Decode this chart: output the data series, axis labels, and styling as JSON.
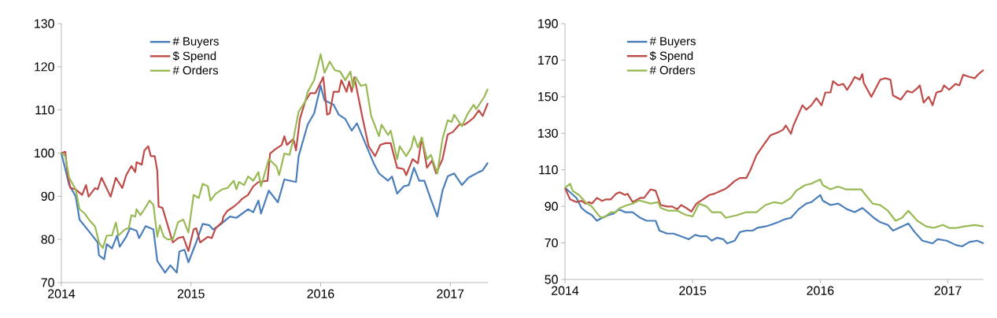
{
  "chart_data": [
    {
      "type": "line",
      "xlim": [
        2014,
        2017.29
      ],
      "xticks": [
        2014,
        2015,
        2016,
        2017
      ],
      "ylim": [
        70,
        130
      ],
      "yticks": [
        70,
        80,
        90,
        100,
        110,
        120,
        130
      ],
      "grid": false,
      "legend": "top left",
      "marker": "none",
      "line_style": "solid",
      "series": [
        {
          "name": "# Buyers",
          "color": "#4a7ebb",
          "x": [
            2014.0,
            2014.06,
            2014.11,
            2014.14,
            2014.22,
            2014.28,
            2014.29,
            2014.33,
            2014.35,
            2014.39,
            2014.43,
            2014.45,
            2014.5,
            2014.53,
            2014.58,
            2014.6,
            2014.65,
            2014.71,
            2014.74,
            2014.8,
            2014.84,
            2014.89,
            2014.91,
            2014.95,
            2014.98,
            2015.04,
            2015.09,
            2015.14,
            2015.17,
            2015.22,
            2015.3,
            2015.35,
            2015.44,
            2015.48,
            2015.52,
            2015.54,
            2015.6,
            2015.67,
            2015.72,
            2015.81,
            2015.83,
            2015.9,
            2015.95,
            2016.0,
            2016.03,
            2016.1,
            2016.14,
            2016.19,
            2016.24,
            2016.28,
            2016.33,
            2016.41,
            2016.45,
            2016.52,
            2016.55,
            2016.59,
            2016.64,
            2016.68,
            2016.72,
            2016.76,
            2016.8,
            2016.85,
            2016.9,
            2016.94,
            2016.98,
            2017.03,
            2017.09,
            2017.14,
            2017.22,
            2017.25,
            2017.29
          ],
          "values": [
            100,
            92.6,
            90,
            84.6,
            81.6,
            79.3,
            76.3,
            75.4,
            78.9,
            77.9,
            80.9,
            78.3,
            80.6,
            82.6,
            82,
            80.3,
            83.1,
            82.3,
            75,
            72.3,
            74,
            72.3,
            77.2,
            77.6,
            74.7,
            79.3,
            83.6,
            83.3,
            82.3,
            83.3,
            85.3,
            85,
            87,
            86.3,
            89,
            86,
            91.3,
            88.6,
            93.9,
            93.3,
            99.3,
            106.6,
            109.2,
            115.6,
            112.2,
            111.2,
            108.9,
            107.9,
            105.2,
            106.9,
            103.3,
            97.6,
            95.3,
            93.6,
            94.6,
            90.6,
            92.3,
            92.6,
            96.6,
            93.6,
            93.6,
            89.3,
            85.3,
            91.3,
            94.6,
            95.3,
            92.6,
            94.3,
            95.6,
            96,
            97.8
          ]
        },
        {
          "name": "$ Spend",
          "color": "#be4b48",
          "x": [
            2014.0,
            2014.03,
            2014.05,
            2014.07,
            2014.11,
            2014.16,
            2014.19,
            2014.21,
            2014.26,
            2014.28,
            2014.31,
            2014.38,
            2014.42,
            2014.47,
            2014.5,
            2014.54,
            2014.57,
            2014.58,
            2014.62,
            2014.64,
            2014.67,
            2014.69,
            2014.72,
            2014.74,
            2014.75,
            2014.78,
            2014.82,
            2014.86,
            2014.9,
            2014.94,
            2014.98,
            2015.02,
            2015.04,
            2015.07,
            2015.13,
            2015.16,
            2015.19,
            2015.24,
            2015.25,
            2015.28,
            2015.33,
            2015.37,
            2015.39,
            2015.44,
            2015.48,
            2015.52,
            2015.59,
            2015.61,
            2015.65,
            2015.7,
            2015.72,
            2015.74,
            2015.79,
            2015.81,
            2015.84,
            2015.88,
            2015.92,
            2015.96,
            2016.02,
            2016.05,
            2016.07,
            2016.1,
            2016.14,
            2016.16,
            2016.2,
            2016.22,
            2016.24,
            2016.26,
            2016.32,
            2016.37,
            2016.42,
            2016.46,
            2016.5,
            2016.54,
            2016.59,
            2016.64,
            2016.66,
            2016.71,
            2016.75,
            2016.78,
            2016.82,
            2016.86,
            2016.89,
            2016.94,
            2016.98,
            2017.02,
            2017.07,
            2017.11,
            2017.14,
            2017.18,
            2017.22,
            2017.25,
            2017.29
          ],
          "values": [
            100,
            100.3,
            94.6,
            91.9,
            91.6,
            90.3,
            92.6,
            89.9,
            91.9,
            91.6,
            94.3,
            89.9,
            94.3,
            91.9,
            94.9,
            97,
            95.6,
            97.9,
            97.3,
            100.6,
            101.6,
            99.3,
            99.3,
            95.9,
            87.6,
            87.3,
            83.3,
            79.3,
            80.3,
            80.6,
            77.3,
            82.3,
            82.6,
            79.3,
            80.6,
            80.3,
            82.6,
            84,
            85.3,
            86.6,
            87.6,
            88.6,
            89.3,
            90.3,
            92.3,
            93.3,
            93.6,
            99.9,
            100.9,
            101.9,
            103.9,
            101.9,
            103.3,
            100.6,
            107.9,
            111.9,
            113.9,
            113.9,
            117.6,
            108.9,
            109.2,
            114.2,
            114.2,
            116.9,
            114.2,
            116.6,
            114.2,
            117.6,
            108.6,
            101.6,
            99.3,
            101.9,
            102.3,
            102.3,
            96.6,
            96.3,
            94.9,
            98.6,
            97.6,
            103.6,
            96.6,
            98.3,
            95.3,
            98.6,
            104.3,
            104.9,
            106.6,
            106.6,
            107.2,
            108.2,
            109.9,
            108.6,
            111.6
          ]
        },
        {
          "name": "# Orders",
          "color": "#98b954",
          "x": [
            2014.0,
            2014.03,
            2014.06,
            2014.11,
            2014.14,
            2014.18,
            2014.22,
            2014.26,
            2014.29,
            2014.32,
            2014.35,
            2014.39,
            2014.42,
            2014.44,
            2014.49,
            2014.52,
            2014.54,
            2014.57,
            2014.58,
            2014.61,
            2014.64,
            2014.68,
            2014.71,
            2014.74,
            2014.76,
            2014.79,
            2014.82,
            2014.86,
            2014.9,
            2014.94,
            2014.98,
            2015.02,
            2015.06,
            2015.09,
            2015.13,
            2015.15,
            2015.19,
            2015.24,
            2015.28,
            2015.33,
            2015.35,
            2015.37,
            2015.41,
            2015.44,
            2015.48,
            2015.52,
            2015.54,
            2015.6,
            2015.66,
            2015.68,
            2015.72,
            2015.76,
            2015.79,
            2015.83,
            2015.88,
            2015.9,
            2015.95,
            2016.0,
            2016.03,
            2016.07,
            2016.11,
            2016.15,
            2016.19,
            2016.23,
            2016.25,
            2016.27,
            2016.31,
            2016.35,
            2016.39,
            2016.45,
            2016.47,
            2016.52,
            2016.54,
            2016.59,
            2016.61,
            2016.66,
            2016.7,
            2016.72,
            2016.75,
            2016.78,
            2016.82,
            2016.85,
            2016.9,
            2016.94,
            2016.98,
            2017.01,
            2017.03,
            2017.09,
            2017.13,
            2017.18,
            2017.2,
            2017.26,
            2017.29
          ],
          "values": [
            100,
            99.3,
            94.3,
            91.6,
            87,
            86,
            84.3,
            83,
            79.3,
            78,
            80.9,
            80.9,
            83.9,
            80.9,
            82.3,
            82.6,
            85.6,
            85.3,
            87,
            85.6,
            87,
            89,
            88,
            80.6,
            83.3,
            80.6,
            80,
            80,
            84,
            84.6,
            81.6,
            90.3,
            89.6,
            92.9,
            92.3,
            89,
            90.6,
            91.6,
            91.9,
            93.6,
            91.6,
            93.3,
            92.6,
            94.6,
            93.6,
            95.6,
            92.3,
            98.6,
            96.9,
            94.9,
            99.9,
            99.6,
            103.3,
            109.6,
            111.9,
            114.2,
            116.9,
            122.9,
            118.6,
            121.2,
            119.2,
            118.9,
            116.9,
            118.9,
            115.2,
            117.6,
            115.6,
            115.9,
            108.6,
            103.9,
            106.6,
            104.2,
            105.2,
            98.6,
            101.6,
            99.3,
            101.3,
            103.9,
            101.3,
            103.6,
            98.6,
            99.6,
            95.3,
            103.3,
            107.6,
            107.2,
            108.9,
            106.2,
            108.9,
            111.2,
            110.2,
            112.9,
            114.9
          ]
        }
      ]
    },
    {
      "type": "line",
      "xlim": [
        2014,
        2017.28
      ],
      "xticks": [
        2014,
        2015,
        2016,
        2017
      ],
      "ylim": [
        50,
        190
      ],
      "yticks": [
        50,
        70,
        90,
        110,
        130,
        150,
        170,
        190
      ],
      "grid": false,
      "legend": "top left",
      "marker": "none",
      "line_style": "solid",
      "series": [
        {
          "name": "# Buyers",
          "color": "#4a7ebb",
          "x": [
            2014.0,
            2014.04,
            2014.09,
            2014.13,
            2014.17,
            2014.21,
            2014.25,
            2014.29,
            2014.34,
            2014.38,
            2014.42,
            2014.47,
            2014.53,
            2014.59,
            2014.64,
            2014.71,
            2014.74,
            2014.8,
            2014.85,
            2014.91,
            2014.97,
            2015.02,
            2015.06,
            2015.11,
            2015.15,
            2015.19,
            2015.24,
            2015.27,
            2015.33,
            2015.37,
            2015.42,
            2015.47,
            2015.51,
            2015.57,
            2015.61,
            2015.67,
            2015.72,
            2015.77,
            2015.83,
            2015.89,
            2015.93,
            2016.0,
            2016.02,
            2016.08,
            2016.14,
            2016.21,
            2016.27,
            2016.33,
            2016.37,
            2016.42,
            2016.47,
            2016.53,
            2016.57,
            2016.62,
            2016.69,
            2016.74,
            2016.8,
            2016.88,
            2016.92,
            2016.99,
            2017.06,
            2017.11,
            2017.17,
            2017.23,
            2017.28
          ],
          "values": [
            100.1,
            97.7,
            94.6,
            89.1,
            86.8,
            85.2,
            82.1,
            83.7,
            85.2,
            86,
            88.4,
            86.8,
            86.8,
            83.7,
            82.1,
            82.1,
            76.7,
            75.1,
            75.1,
            73.6,
            72,
            74.4,
            73.6,
            73.6,
            71.2,
            72.8,
            72,
            69.7,
            71.2,
            75.9,
            76.7,
            76.7,
            78.3,
            79,
            79.8,
            81.3,
            82.9,
            83.7,
            88.4,
            91.5,
            92.3,
            96.2,
            93.1,
            90.7,
            91.5,
            88.4,
            86.8,
            89.1,
            86.8,
            83.7,
            81.3,
            79.8,
            76.7,
            78.3,
            80.6,
            75.9,
            71.2,
            69.7,
            72,
            71.2,
            68.9,
            68.1,
            70.5,
            71.2,
            69.7
          ]
        },
        {
          "name": "$ Spend",
          "color": "#be4b48",
          "x": [
            2014.0,
            2014.04,
            2014.09,
            2014.13,
            2014.16,
            2014.19,
            2014.21,
            2014.25,
            2014.29,
            2014.32,
            2014.36,
            2014.4,
            2014.43,
            2014.47,
            2014.49,
            2014.53,
            2014.59,
            2014.62,
            2014.67,
            2014.71,
            2014.75,
            2014.8,
            2014.84,
            2014.88,
            2014.91,
            2014.95,
            2014.99,
            2015.03,
            2015.08,
            2015.13,
            2015.17,
            2015.22,
            2015.25,
            2015.28,
            2015.33,
            2015.37,
            2015.42,
            2015.45,
            2015.5,
            2015.57,
            2015.61,
            2015.67,
            2015.71,
            2015.73,
            2015.77,
            2015.79,
            2015.82,
            2015.86,
            2015.89,
            2015.93,
            2015.97,
            2016.01,
            2016.04,
            2016.08,
            2016.1,
            2016.14,
            2016.18,
            2016.21,
            2016.24,
            2016.27,
            2016.31,
            2016.33,
            2016.34,
            2016.4,
            2016.47,
            2016.51,
            2016.55,
            2016.57,
            2016.63,
            2016.68,
            2016.72,
            2016.76,
            2016.78,
            2016.81,
            2016.85,
            2016.88,
            2016.91,
            2016.95,
            2016.97,
            2017.01,
            2017.06,
            2017.09,
            2017.12,
            2017.17,
            2017.21,
            2017.24,
            2017.28
          ],
          "values": [
            100.1,
            93.8,
            92.3,
            93,
            91.5,
            92.3,
            91.5,
            94.6,
            93,
            93.8,
            93.8,
            96.9,
            97.7,
            96.2,
            96.9,
            92.3,
            94.6,
            94.6,
            99.3,
            98.5,
            90.7,
            89.9,
            89.9,
            88.4,
            90.7,
            89.1,
            87.1,
            91.5,
            93.8,
            96.2,
            96.9,
            98.5,
            99.3,
            100.8,
            103.9,
            105.5,
            105.5,
            109.4,
            118,
            125,
            128.9,
            130.5,
            132,
            134.3,
            129.7,
            134.3,
            139,
            145.3,
            142.9,
            145.3,
            149.2,
            145.3,
            152.3,
            152.3,
            158.5,
            156.2,
            157,
            153.8,
            157,
            160.8,
            159.3,
            162.4,
            157.7,
            149.9,
            159.3,
            160.1,
            159.3,
            150.7,
            148.4,
            153.1,
            152.3,
            154.6,
            156.2,
            146.8,
            149.9,
            145.3,
            152.3,
            153.1,
            156.2,
            153.8,
            157,
            156.2,
            162,
            160.8,
            160.1,
            162.4,
            164.7
          ]
        },
        {
          "name": "# Orders",
          "color": "#98b954",
          "x": [
            2014.0,
            2014.04,
            2014.06,
            2014.11,
            2014.16,
            2014.21,
            2014.27,
            2014.3,
            2014.36,
            2014.4,
            2014.43,
            2014.49,
            2014.53,
            2014.58,
            2014.67,
            2014.73,
            2014.75,
            2014.81,
            2014.88,
            2014.95,
            2015.0,
            2015.05,
            2015.11,
            2015.15,
            2015.22,
            2015.26,
            2015.35,
            2015.42,
            2015.5,
            2015.57,
            2015.64,
            2015.7,
            2015.77,
            2015.81,
            2015.88,
            2015.93,
            2016.0,
            2016.02,
            2016.08,
            2016.14,
            2016.2,
            2016.25,
            2016.32,
            2016.41,
            2016.47,
            2016.53,
            2016.59,
            2016.64,
            2016.69,
            2016.76,
            2016.83,
            2016.89,
            2016.96,
            2017.01,
            2017.07,
            2017.13,
            2017.21,
            2017.28
          ],
          "values": [
            100.1,
            102.4,
            98.5,
            96.2,
            92.3,
            89.9,
            84.5,
            83.7,
            86.8,
            86.8,
            89.1,
            90.7,
            91.5,
            93.3,
            91.5,
            92.3,
            89.1,
            87.6,
            87.6,
            85.2,
            84.5,
            91.5,
            89.9,
            86.8,
            86.8,
            83.7,
            85.2,
            86.8,
            86.8,
            90.7,
            92.3,
            91.5,
            94.6,
            98.5,
            101.6,
            102.4,
            104.7,
            101.6,
            99.3,
            100.8,
            99.3,
            99.3,
            99.3,
            91.5,
            90.7,
            87.6,
            82.1,
            83.7,
            87.6,
            82.1,
            79,
            78.2,
            79.8,
            78.2,
            78.2,
            79,
            79.8,
            79
          ]
        }
      ]
    }
  ]
}
